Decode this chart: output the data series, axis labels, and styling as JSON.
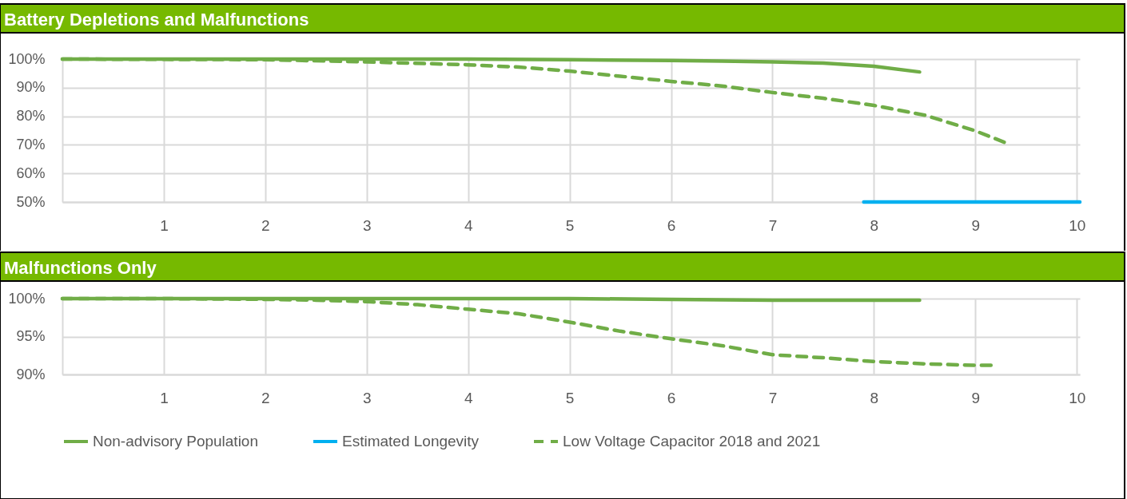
{
  "chart_data": [
    {
      "type": "line",
      "title": "Battery Depletions and Malfunctions",
      "xlim": [
        0,
        10.03
      ],
      "xticks": [
        {
          "value": 0,
          "label": null
        },
        1,
        2,
        3,
        4,
        5,
        6,
        7,
        8,
        9,
        10
      ],
      "ylim": [
        50,
        100
      ],
      "yticks": [
        {
          "value": 50,
          "label": "50%"
        },
        {
          "value": 60,
          "label": "60%"
        },
        {
          "value": 70,
          "label": "70%"
        },
        {
          "value": 80,
          "label": "80%"
        },
        {
          "value": 90,
          "label": "90%"
        },
        {
          "value": 100,
          "label": "100%"
        }
      ],
      "grid": true,
      "legend": false,
      "marker": "none",
      "series": [
        {
          "color": "#70ad47",
          "line_style": "solid",
          "x": [
            0,
            1,
            2,
            3,
            4,
            5,
            6,
            6.5,
            7,
            7.5,
            8,
            8.45
          ],
          "values": [
            100,
            100,
            100,
            100,
            100,
            99.8,
            99.5,
            99.3,
            99,
            98.6,
            97.5,
            95.5
          ]
        },
        {
          "color": "#00b0f0",
          "line_style": "solid",
          "x": [
            7.9,
            10.03
          ],
          "values": [
            50,
            50
          ]
        },
        {
          "color": "#70ad47",
          "line_style": "dashed",
          "x": [
            0,
            1,
            2,
            3,
            4,
            4.5,
            5,
            5.5,
            6,
            6.5,
            7,
            7.5,
            8,
            8.5,
            9,
            9.3
          ],
          "values": [
            100,
            99.9,
            99.8,
            99,
            98,
            97.2,
            95.8,
            94,
            92.2,
            90.6,
            88.3,
            86.3,
            83.8,
            80.4,
            74.9,
            70.7
          ]
        }
      ]
    },
    {
      "type": "line",
      "title": "Malfunctions Only",
      "xlim": [
        0,
        10.03
      ],
      "xticks": [
        {
          "value": 0,
          "label": null
        },
        1,
        2,
        3,
        4,
        5,
        6,
        7,
        8,
        9,
        10
      ],
      "ylim": [
        90,
        100
      ],
      "yticks": [
        {
          "value": 90,
          "label": "90%"
        },
        {
          "value": 95,
          "label": "95%"
        },
        {
          "value": 100,
          "label": "100%"
        }
      ],
      "grid": true,
      "legend": "bottom",
      "marker": "none",
      "series": [
        {
          "name": "Non-advisory Population",
          "color": "#70ad47",
          "line_style": "solid",
          "x": [
            0,
            2,
            4,
            5,
            6,
            7,
            8,
            8.45
          ],
          "values": [
            100,
            100,
            100,
            100,
            99.9,
            99.8,
            99.8,
            99.8
          ]
        },
        {
          "name": "Estimated Longevity",
          "color": "#00b0f0",
          "line_style": "solid"
        },
        {
          "name": "Low Voltage Capacitor 2018 and 2021",
          "color": "#70ad47",
          "line_style": "dashed",
          "x": [
            0,
            1,
            2,
            2.5,
            3,
            3.5,
            4,
            4.5,
            5,
            5.5,
            6,
            6.5,
            7,
            7.5,
            8,
            8.5,
            9,
            9.2
          ],
          "values": [
            100,
            100,
            99.9,
            99.8,
            99.6,
            99.2,
            98.6,
            98,
            96.9,
            95.7,
            94.7,
            93.8,
            92.6,
            92.2,
            91.7,
            91.4,
            91.2,
            91.2
          ]
        }
      ]
    }
  ]
}
